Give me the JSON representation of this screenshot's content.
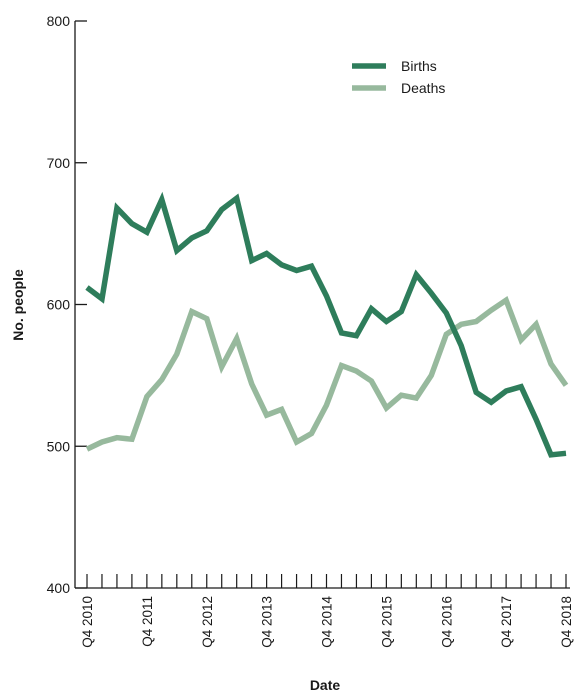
{
  "chart_data": {
    "type": "line",
    "title": "",
    "xlabel": "Date",
    "ylabel": "No. people",
    "ylim": [
      400,
      800
    ],
    "yticks": [
      400,
      500,
      600,
      700,
      800
    ],
    "x": [
      "Q4 2010",
      "Q1 2011",
      "Q2 2011",
      "Q3 2011",
      "Q4 2011",
      "Q1 2012",
      "Q2 2012",
      "Q3 2012",
      "Q4 2012",
      "Q1 2013",
      "Q2 2013",
      "Q3 2013",
      "Q4 2013",
      "Q1 2014",
      "Q2 2014",
      "Q3 2014",
      "Q4 2014",
      "Q1 2015",
      "Q2 2015",
      "Q3 2015",
      "Q4 2015",
      "Q1 2016",
      "Q2 2016",
      "Q3 2016",
      "Q4 2016",
      "Q1 2017",
      "Q2 2017",
      "Q3 2017",
      "Q4 2017",
      "Q1 2018",
      "Q2 2018",
      "Q3 2018",
      "Q4 2018"
    ],
    "x_tick_labels": [
      "Q4 2010",
      "Q4 2011",
      "Q4 2012",
      "Q4 2013",
      "Q4 2014",
      "Q4 2015",
      "Q4 2016",
      "Q4 2017",
      "Q4 2018"
    ],
    "legend_position": "top-right",
    "grid": false,
    "series": [
      {
        "name": "Births",
        "color": "#2e7d5b",
        "values": [
          612,
          604,
          668,
          657,
          651,
          674,
          638,
          647,
          652,
          667,
          675,
          631,
          636,
          628,
          624,
          627,
          606,
          580,
          578,
          597,
          588,
          595,
          621,
          608,
          594,
          571,
          538,
          531,
          539,
          542,
          519,
          494,
          495
        ]
      },
      {
        "name": "Deaths",
        "color": "#97b99d",
        "values": [
          498,
          503,
          506,
          505,
          535,
          547,
          565,
          595,
          590,
          556,
          576,
          544,
          522,
          526,
          503,
          509,
          529,
          557,
          553,
          546,
          527,
          536,
          534,
          550,
          579,
          586,
          588,
          596,
          603,
          575,
          586,
          558,
          543
        ]
      }
    ]
  }
}
